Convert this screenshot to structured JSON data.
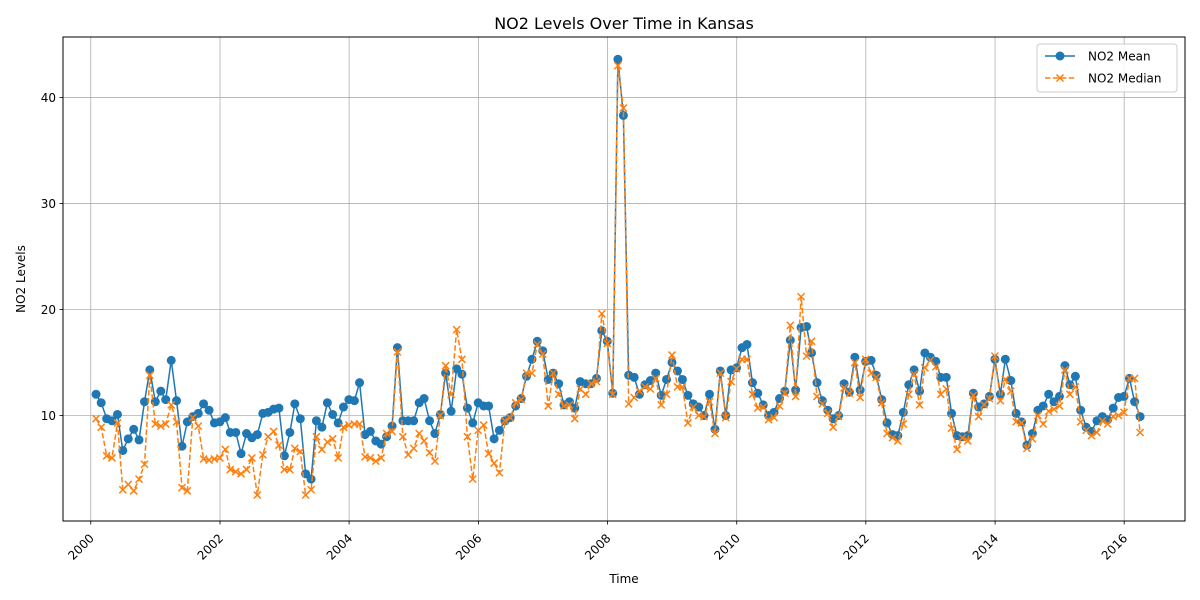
{
  "chart_data": {
    "type": "line",
    "title": "NO2 Levels Over Time in Kansas",
    "xlabel": "Time",
    "ylabel": "NO2 Levels",
    "x_range": [
      "1999-07-28",
      "2016-12-10"
    ],
    "ylim": [
      0.05,
      45.7
    ],
    "x_ticks": [
      "2000",
      "2002",
      "2004",
      "2006",
      "2008",
      "2010",
      "2012",
      "2014",
      "2016"
    ],
    "y_ticks": [
      10,
      20,
      30,
      40
    ],
    "grid": true,
    "legend": "top-right",
    "dates": [
      "2000-01",
      "2000-02",
      "2000-03",
      "2000-04",
      "2000-05",
      "2000-06",
      "2000-07",
      "2000-08",
      "2000-09",
      "2000-10",
      "2000-11",
      "2000-12",
      "2001-01",
      "2001-02",
      "2001-03",
      "2001-04",
      "2001-05",
      "2001-06",
      "2001-07",
      "2001-08",
      "2001-09",
      "2001-10",
      "2001-11",
      "2001-12",
      "2002-01",
      "2002-02",
      "2002-03",
      "2002-04",
      "2002-05",
      "2002-06",
      "2002-07",
      "2002-08",
      "2002-09",
      "2002-10",
      "2002-11",
      "2002-12",
      "2003-01",
      "2003-02",
      "2003-03",
      "2003-04",
      "2003-05",
      "2003-06",
      "2003-07",
      "2003-08",
      "2003-09",
      "2003-10",
      "2003-11",
      "2003-12",
      "2004-01",
      "2004-02",
      "2004-03",
      "2004-04",
      "2004-05",
      "2004-06",
      "2004-07",
      "2004-08",
      "2004-09",
      "2004-10",
      "2004-11",
      "2004-12",
      "2005-01",
      "2005-02",
      "2005-03",
      "2005-04",
      "2005-05",
      "2005-06",
      "2005-07",
      "2005-08",
      "2005-09",
      "2005-10",
      "2005-11",
      "2005-12",
      "2006-01",
      "2006-02",
      "2006-03",
      "2006-04",
      "2006-05",
      "2006-06",
      "2006-07",
      "2006-08",
      "2006-09",
      "2006-10",
      "2006-11",
      "2006-12",
      "2007-01",
      "2007-02",
      "2007-03",
      "2007-04",
      "2007-05",
      "2007-06",
      "2007-07",
      "2007-08",
      "2007-09",
      "2007-10",
      "2007-11",
      "2007-12",
      "2008-01",
      "2008-02",
      "2008-03",
      "2008-04",
      "2008-05",
      "2008-06",
      "2008-07",
      "2008-08",
      "2008-09",
      "2008-10",
      "2008-11",
      "2008-12",
      "2009-01",
      "2009-02",
      "2009-03",
      "2009-04",
      "2009-05",
      "2009-06",
      "2009-07",
      "2009-08",
      "2009-09",
      "2009-10",
      "2009-11",
      "2009-12",
      "2010-01",
      "2010-02",
      "2010-03",
      "2010-04",
      "2010-05",
      "2010-06",
      "2010-07",
      "2010-08",
      "2010-09",
      "2010-10",
      "2010-11",
      "2010-12",
      "2011-01",
      "2011-02",
      "2011-03",
      "2011-04",
      "2011-05",
      "2011-06",
      "2011-07",
      "2011-08",
      "2011-09",
      "2011-10",
      "2011-11",
      "2011-12",
      "2012-01",
      "2012-02",
      "2012-03",
      "2012-04",
      "2012-05",
      "2012-06",
      "2012-07",
      "2012-08",
      "2012-09",
      "2012-10",
      "2012-11",
      "2012-12",
      "2013-01",
      "2013-02",
      "2013-03",
      "2013-04",
      "2013-05",
      "2013-06",
      "2013-07",
      "2013-08",
      "2013-09",
      "2013-10",
      "2013-11",
      "2013-12",
      "2014-01",
      "2014-02",
      "2014-03",
      "2014-04",
      "2014-05",
      "2014-06",
      "2014-07",
      "2014-08",
      "2014-09",
      "2014-10",
      "2014-11",
      "2014-12",
      "2015-01",
      "2015-02",
      "2015-03",
      "2015-04",
      "2015-05",
      "2015-06",
      "2015-07",
      "2015-08",
      "2015-09",
      "2015-10",
      "2015-11",
      "2015-12",
      "2016-01",
      "2016-02",
      "2016-03"
    ],
    "series": [
      {
        "name": "NO2 Mean",
        "color": "#1f77b4",
        "marker": "circle",
        "line": "solid",
        "values": [
          12.0,
          11.2,
          9.7,
          9.5,
          10.1,
          6.7,
          7.8,
          8.7,
          7.7,
          11.3,
          14.3,
          11.3,
          12.3,
          11.5,
          15.2,
          11.4,
          7.1,
          9.4,
          9.9,
          10.2,
          11.1,
          10.5,
          9.3,
          9.4,
          9.8,
          8.4,
          8.4,
          6.4,
          8.3,
          7.9,
          8.2,
          10.2,
          10.3,
          10.6,
          10.7,
          6.2,
          8.4,
          11.1,
          9.7,
          4.5,
          4.0,
          9.5,
          8.9,
          11.2,
          10.1,
          9.3,
          10.8,
          11.5,
          11.4,
          13.1,
          8.2,
          8.5,
          7.6,
          7.3,
          8.0,
          9.0,
          16.4,
          9.5,
          9.5,
          9.5,
          11.2,
          11.6,
          9.5,
          8.3,
          10.1,
          14.0,
          10.4,
          14.4,
          13.9,
          10.7,
          9.3,
          11.2,
          10.9,
          10.9,
          7.8,
          8.6,
          9.5,
          9.8,
          10.9,
          11.6,
          13.7,
          15.3,
          17.0,
          16.1,
          13.4,
          14.0,
          13.0,
          11.0,
          11.3,
          10.7,
          13.2,
          13.0,
          13.0,
          13.5,
          18.0,
          17.0,
          12.1,
          43.6,
          38.3,
          13.8,
          13.6,
          12.0,
          12.9,
          13.3,
          14.0,
          11.9,
          13.4,
          15.0,
          14.2,
          13.4,
          11.9,
          11.1,
          10.8,
          10.0,
          12.0,
          8.7,
          14.2,
          10.0,
          14.3,
          14.5,
          16.4,
          16.7,
          13.1,
          12.1,
          11.0,
          10.0,
          10.3,
          11.6,
          12.3,
          17.1,
          12.4,
          18.3,
          18.4,
          15.9,
          13.1,
          11.4,
          10.5,
          9.7,
          10.0,
          13.0,
          12.2,
          15.5,
          12.4,
          15.1,
          15.2,
          13.8,
          11.5,
          9.3,
          8.2,
          8.1,
          10.3,
          12.9,
          14.3,
          12.3,
          15.9,
          15.5,
          15.1,
          13.6,
          13.6,
          10.2,
          8.1,
          8.0,
          8.1,
          12.1,
          10.8,
          11.1,
          11.8,
          15.3,
          12.0,
          15.3,
          13.3,
          10.2,
          9.4,
          7.2,
          8.3,
          10.5,
          10.9,
          12.0,
          11.3,
          11.8,
          14.7,
          12.9,
          13.7,
          10.5,
          8.9,
          8.5,
          9.5,
          9.9,
          9.6,
          10.7,
          11.7,
          11.8,
          13.5,
          11.3,
          9.9
        ]
      },
      {
        "name": "NO2 Median",
        "color": "#ff7f0e",
        "marker": "x",
        "line": "dashed",
        "values": [
          9.7,
          8.9,
          6.2,
          6.0,
          9.3,
          3.0,
          3.5,
          2.9,
          4.0,
          5.4,
          13.8,
          9.2,
          9.0,
          9.2,
          11.0,
          9.4,
          3.2,
          2.9,
          9.8,
          9.0,
          5.9,
          5.8,
          5.9,
          6.0,
          6.8,
          4.9,
          4.7,
          4.5,
          4.9,
          6.0,
          2.5,
          6.3,
          8.0,
          8.5,
          7.2,
          4.9,
          4.9,
          6.9,
          6.6,
          2.5,
          3.0,
          8.0,
          6.8,
          7.5,
          7.8,
          6.0,
          8.9,
          9.1,
          9.2,
          9.2,
          6.1,
          6.0,
          5.7,
          6.0,
          8.3,
          8.5,
          16.0,
          8.0,
          6.3,
          6.9,
          8.3,
          7.6,
          6.5,
          5.7,
          10.0,
          14.7,
          12.0,
          18.1,
          15.3,
          8.0,
          4.0,
          8.6,
          9.1,
          6.4,
          5.5,
          4.6,
          9.5,
          9.8,
          11.2,
          11.5,
          14.0,
          14.0,
          16.7,
          15.8,
          10.9,
          14.0,
          12.0,
          10.9,
          11.0,
          9.7,
          12.5,
          12.0,
          13.0,
          13.2,
          19.6,
          16.8,
          12.0,
          43.0,
          39.0,
          11.1,
          11.7,
          12.3,
          12.7,
          12.5,
          13.5,
          11.0,
          12.0,
          15.7,
          12.7,
          12.7,
          9.3,
          10.8,
          10.0,
          9.9,
          11.3,
          8.3,
          14.0,
          9.8,
          13.2,
          14.4,
          15.3,
          15.3,
          12.0,
          10.7,
          10.8,
          9.6,
          9.8,
          10.9,
          12.1,
          18.5,
          11.8,
          21.2,
          15.6,
          17.0,
          11.8,
          11.1,
          10.2,
          8.9,
          9.9,
          12.6,
          12.1,
          15.0,
          11.7,
          15.3,
          14.0,
          13.6,
          11.2,
          8.3,
          7.9,
          7.6,
          9.2,
          12.0,
          13.9,
          11.0,
          14.5,
          15.2,
          14.6,
          12.0,
          12.5,
          8.8,
          6.8,
          7.9,
          7.6,
          11.9,
          9.9,
          11.0,
          11.6,
          15.6,
          11.4,
          13.4,
          12.3,
          9.4,
          9.3,
          6.9,
          7.8,
          10.0,
          9.2,
          10.4,
          10.6,
          10.9,
          14.3,
          12.0,
          12.7,
          9.4,
          8.6,
          8.1,
          8.4,
          9.5,
          9.2,
          9.9,
          10.0,
          10.3,
          13.5,
          13.5,
          8.4
        ]
      }
    ]
  }
}
